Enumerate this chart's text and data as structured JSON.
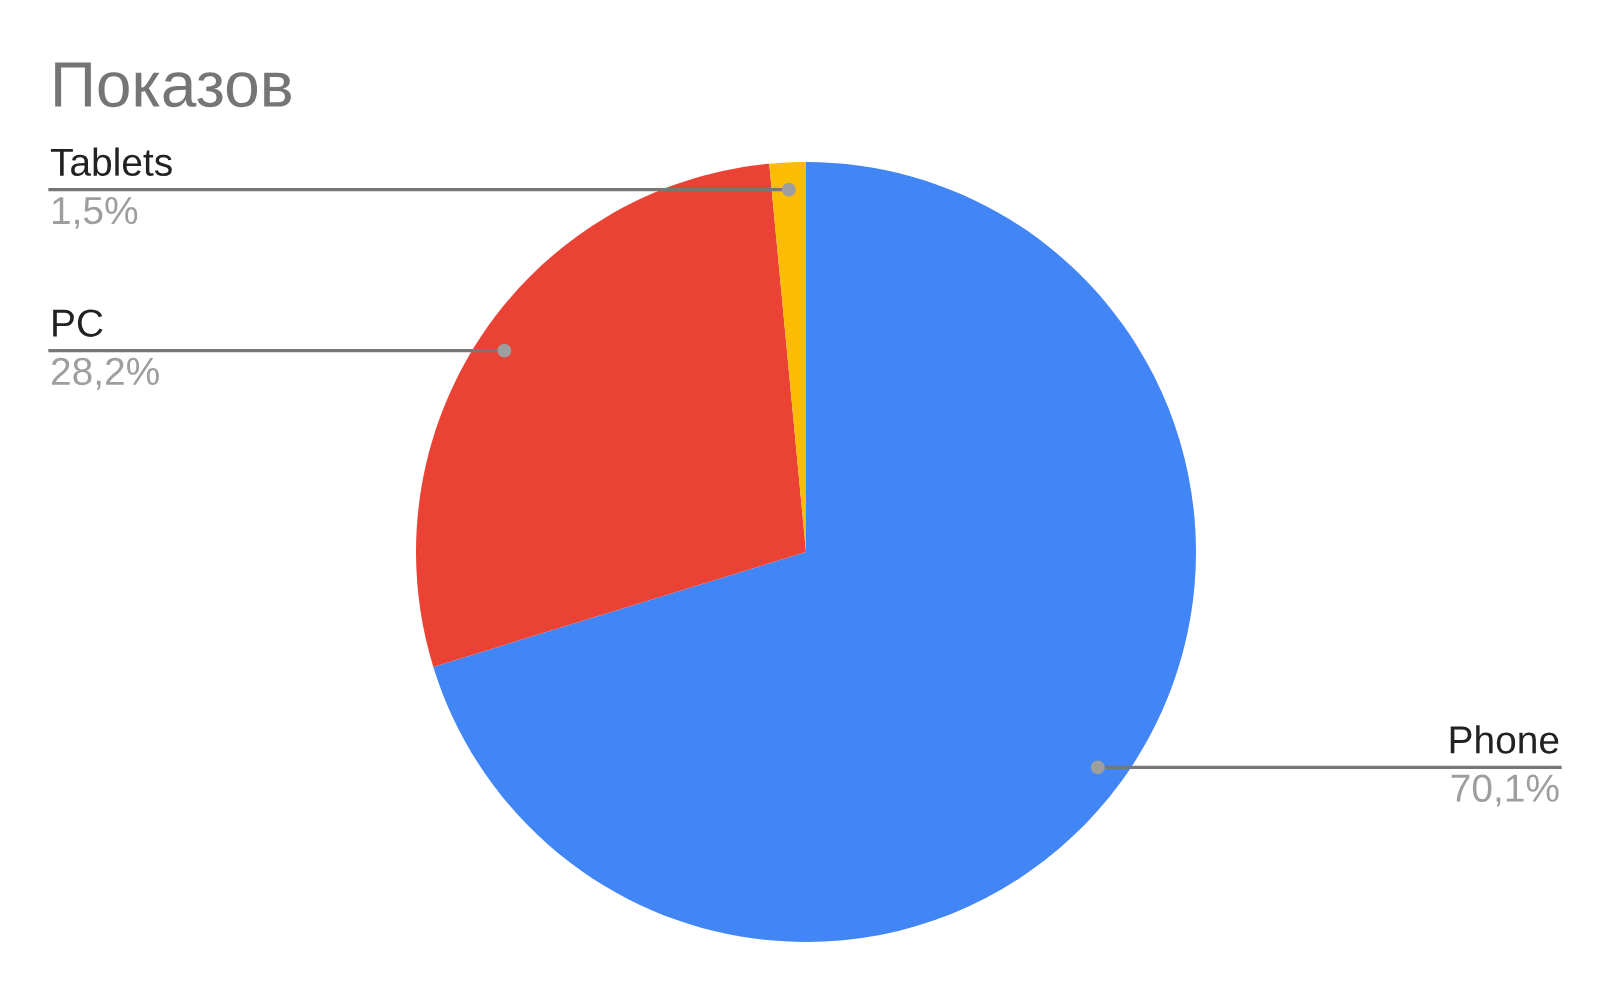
{
  "chart_data": {
    "type": "pie",
    "title": "Показов",
    "categories": [
      "Phone",
      "PC",
      "Tablets"
    ],
    "values": [
      70.1,
      28.2,
      1.5
    ],
    "value_labels": [
      "70,1%",
      "28,2%",
      "1,5%"
    ],
    "colors": [
      "#4285f4",
      "#ea4335",
      "#fbbc04"
    ]
  }
}
